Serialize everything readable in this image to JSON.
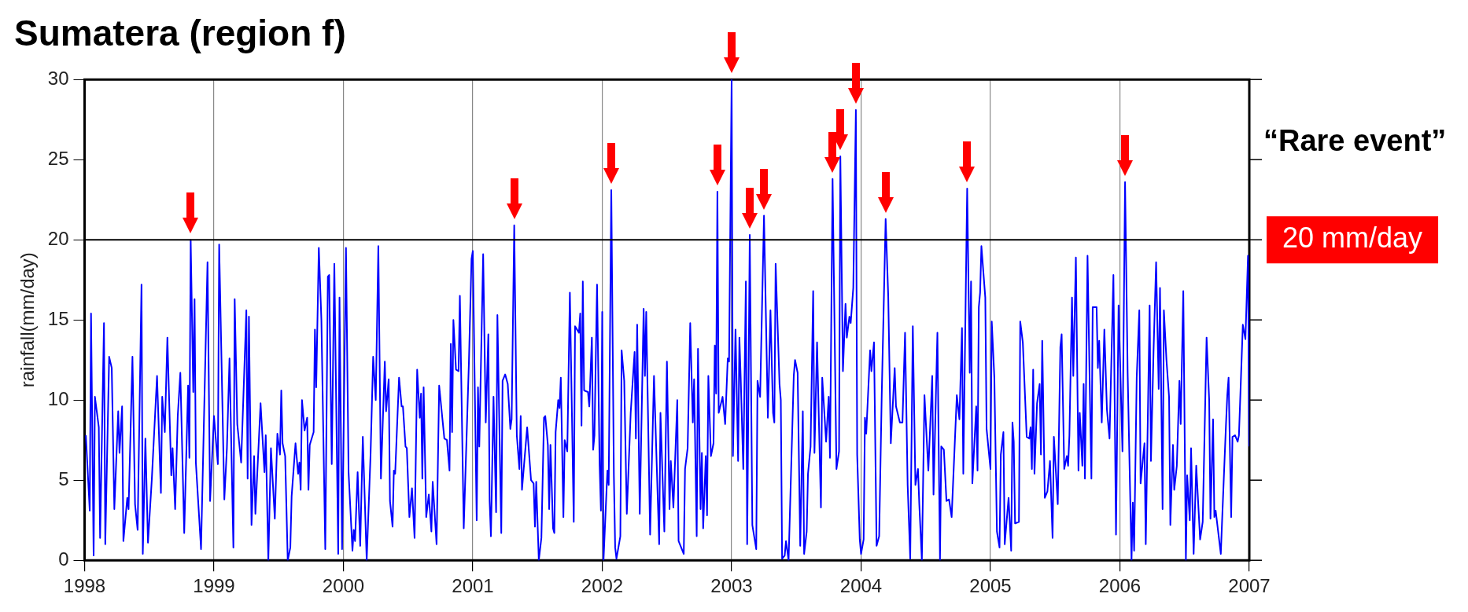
{
  "chart_data": {
    "type": "line",
    "title": "Sumatera (region f)",
    "ylabel": "rainfall(mm/day)",
    "xlim": [
      1998,
      2007
    ],
    "xticks": [
      1998,
      1999,
      2000,
      2001,
      2002,
      2003,
      2004,
      2005,
      2006,
      2007
    ],
    "ylim": [
      0,
      30
    ],
    "yticks": [
      0,
      5,
      10,
      15,
      20,
      25,
      30
    ],
    "grid": "x",
    "ref_lines": [
      {
        "axis": "y",
        "value": 20,
        "label": "20 mm/day"
      }
    ],
    "annotations": [
      "“Rare event”"
    ],
    "series": [
      {
        "color": "#0000ff",
        "x": [
          1998.01,
          1998.04,
          1998.05,
          1998.07,
          1998.08,
          1998.11,
          1998.12,
          1998.15,
          1998.16,
          1998.19,
          1998.21,
          1998.23,
          1998.26,
          1998.27,
          1998.29,
          1998.3,
          1998.33,
          1998.34,
          1998.37,
          1998.39,
          1998.41,
          1998.44,
          1998.45,
          1998.47,
          1998.49,
          1998.52,
          1998.56,
          1998.59,
          1998.6,
          1998.62,
          1998.64,
          1998.67,
          1998.68,
          1998.7,
          1998.72,
          1998.74,
          1998.77,
          1998.8,
          1998.81,
          1998.82,
          1998.84,
          1998.85,
          1998.86,
          1998.9,
          1998.95,
          1998.97,
          1999.0,
          1999.03,
          1999.04,
          1999.08,
          1999.1,
          1999.12,
          1999.15,
          1999.16,
          1999.18,
          1999.21,
          1999.25,
          1999.26,
          1999.27,
          1999.29,
          1999.31,
          1999.32,
          1999.36,
          1999.39,
          1999.4,
          1999.42,
          1999.44,
          1999.47,
          1999.49,
          1999.51,
          1999.52,
          1999.53,
          1999.55,
          1999.57,
          1999.59,
          1999.6,
          1999.63,
          1999.65,
          1999.66,
          1999.67,
          1999.68,
          1999.7,
          1999.72,
          1999.73,
          1999.74,
          1999.77,
          1999.78,
          1999.79,
          1999.81,
          1999.83,
          1999.86,
          1999.88,
          1999.89,
          1999.91,
          1999.93,
          1999.96,
          1999.97,
          1999.99,
          2000.02,
          2000.04,
          2000.07,
          2000.08,
          2000.09,
          2000.11,
          2000.13,
          2000.15,
          2000.18,
          2000.21,
          2000.23,
          2000.25,
          2000.27,
          2000.29,
          2000.32,
          2000.33,
          2000.35,
          2000.36,
          2000.38,
          2000.39,
          2000.4,
          2000.43,
          2000.45,
          2000.46,
          2000.48,
          2000.49,
          2000.51,
          2000.53,
          2000.55,
          2000.57,
          2000.59,
          2000.6,
          2000.61,
          2000.62,
          2000.64,
          2000.66,
          2000.68,
          2000.69,
          2000.72,
          2000.74,
          2000.78,
          2000.8,
          2000.82,
          2000.83,
          2000.84,
          2000.85,
          2000.87,
          2000.89,
          2000.9,
          2000.93,
          2000.97,
          2000.99,
          2001.0,
          2001.03,
          2001.04,
          2001.05,
          2001.08,
          2001.1,
          2001.12,
          2001.13,
          2001.14,
          2001.16,
          2001.18,
          2001.19,
          2001.22,
          2001.23,
          2001.25,
          2001.27,
          2001.29,
          2001.3,
          2001.32,
          2001.34,
          2001.36,
          2001.37,
          2001.38,
          2001.42,
          2001.45,
          2001.47,
          2001.48,
          2001.49,
          2001.51,
          2001.53,
          2001.55,
          2001.56,
          2001.58,
          2001.59,
          2001.6,
          2001.62,
          2001.63,
          2001.64,
          2001.66,
          2001.67,
          2001.68,
          2001.7,
          2001.71,
          2001.73,
          2001.75,
          2001.78,
          2001.79,
          2001.82,
          2001.83,
          2001.84,
          2001.85,
          2001.86,
          2001.89,
          2001.9,
          2001.92,
          2001.93,
          2001.94,
          2001.96,
          2001.98,
          2001.99,
          2002.0,
          2002.01,
          2002.04,
          2002.05,
          2002.07,
          2002.09,
          2002.1,
          2002.11,
          2002.14,
          2002.15,
          2002.17,
          2002.19,
          2002.22,
          2002.25,
          2002.26,
          2002.27,
          2002.29,
          2002.32,
          2002.33,
          2002.34,
          2002.37,
          2002.4,
          2002.44,
          2002.45,
          2002.48,
          2002.5,
          2002.52,
          2002.53,
          2002.55,
          2002.58,
          2002.59,
          2002.63,
          2002.64,
          2002.66,
          2002.68,
          2002.7,
          2002.71,
          2002.73,
          2002.74,
          2002.76,
          2002.77,
          2002.78,
          2002.8,
          2002.81,
          2002.82,
          2002.84,
          2002.86,
          2002.87,
          2002.88,
          2002.89,
          2002.9,
          2002.93,
          2002.95,
          2002.97,
          2002.98,
          2003.0,
          2003.01,
          2003.03,
          2003.05,
          2003.06,
          2003.07,
          2003.09,
          2003.11,
          2003.12,
          2003.14,
          2003.16,
          2003.19,
          2003.2,
          2003.22,
          2003.25,
          2003.28,
          2003.3,
          2003.32,
          2003.33,
          2003.34,
          2003.37,
          2003.38,
          2003.39,
          2003.41,
          2003.42,
          2003.44,
          2003.48,
          2003.49,
          2003.51,
          2003.53,
          2003.55,
          2003.56,
          2003.58,
          2003.59,
          2003.61,
          2003.63,
          2003.64,
          2003.66,
          2003.69,
          2003.7,
          2003.73,
          2003.75,
          2003.76,
          2003.78,
          2003.81,
          2003.83,
          2003.84,
          2003.86,
          2003.88,
          2003.89,
          2003.91,
          2003.92,
          2003.94,
          2003.96,
          2003.97,
          2003.99,
          2004.0,
          2004.02,
          2004.03,
          2004.04,
          2004.07,
          2004.08,
          2004.1,
          2004.12,
          2004.14,
          2004.16,
          2004.19,
          2004.21,
          2004.23,
          2004.26,
          2004.27,
          2004.3,
          2004.32,
          2004.34,
          2004.36,
          2004.38,
          2004.4,
          2004.42,
          2004.44,
          2004.45,
          2004.47,
          2004.49,
          2004.52,
          2004.55,
          2004.56,
          2004.59,
          2004.61,
          2004.62,
          2004.64,
          2004.66,
          2004.68,
          2004.7,
          2004.74,
          2004.76,
          2004.78,
          2004.79,
          2004.82,
          2004.84,
          2004.85,
          2004.86,
          2004.89,
          2004.9,
          2004.91,
          2004.92,
          2004.93,
          2004.96,
          2004.97,
          2005.0,
          2005.01,
          2005.03,
          2005.05,
          2005.07,
          2005.08,
          2005.1,
          2005.11,
          2005.14,
          2005.16,
          2005.17,
          2005.18,
          2005.19,
          2005.22,
          2005.23,
          2005.25,
          2005.28,
          2005.3,
          2005.31,
          2005.32,
          2005.33,
          2005.34,
          2005.36,
          2005.38,
          2005.39,
          2005.4,
          2005.42,
          2005.44,
          2005.46,
          2005.48,
          2005.49,
          2005.52,
          2005.54,
          2005.55,
          2005.57,
          2005.59,
          2005.6,
          2005.61,
          2005.63,
          2005.64,
          2005.66,
          2005.68,
          2005.69,
          2005.71,
          2005.72,
          2005.73,
          2005.75,
          2005.77,
          2005.78,
          2005.79,
          2005.82,
          2005.83,
          2005.84,
          2005.86,
          2005.88,
          2005.9,
          2005.92,
          2005.95,
          2005.97,
          2005.99,
          2006.02,
          2006.04,
          2006.06,
          2006.09,
          2006.1,
          2006.11,
          2006.13,
          2006.15,
          2006.16,
          2006.19,
          2006.2,
          2006.23,
          2006.24,
          2006.26,
          2006.28,
          2006.3,
          2006.31,
          2006.33,
          2006.34,
          2006.36,
          2006.38,
          2006.39,
          2006.41,
          2006.42,
          2006.44,
          2006.46,
          2006.47,
          2006.49,
          2006.51,
          2006.52,
          2006.54,
          2006.55,
          2006.57,
          2006.59,
          2006.62,
          2006.64,
          2006.67,
          2006.69,
          2006.7,
          2006.72,
          2006.73,
          2006.74,
          2006.78,
          2006.79,
          2006.82,
          2006.83,
          2006.84,
          2006.86,
          2006.87,
          2006.89,
          2006.91,
          2006.92,
          2006.95,
          2006.97,
          2006.99,
          2007.0
        ],
        "values": [
          7.8,
          3.1,
          15.4,
          0.3,
          10.2,
          8.3,
          1.4,
          14.8,
          1,
          12.7,
          12,
          3.2,
          9.3,
          6.7,
          9.6,
          1.2,
          3.9,
          3.2,
          12.7,
          3.5,
          1.9,
          17.2,
          0.4,
          7.6,
          1.1,
          5.1,
          11.5,
          4.2,
          10.2,
          8,
          13.9,
          5.3,
          7,
          3.2,
          9,
          11.7,
          1.7,
          10.9,
          6.4,
          20,
          10.5,
          16.3,
          6.1,
          0.7,
          18.6,
          3.7,
          9,
          6,
          19.7,
          3.8,
          7,
          12.6,
          0.8,
          16.3,
          8.5,
          6.1,
          15.6,
          5.1,
          15.2,
          2.2,
          6.5,
          2.9,
          9.8,
          5.5,
          7.8,
          0,
          7,
          2.6,
          7.9,
          6.6,
          10.6,
          7.3,
          6.5,
          0,
          0.8,
          4,
          7.3,
          5.4,
          6.1,
          4.4,
          10,
          8.1,
          8.9,
          4.4,
          7.2,
          8,
          14.4,
          10.8,
          19.5,
          15,
          0.7,
          17.7,
          17.8,
          6,
          18.5,
          0.4,
          16.4,
          0.7,
          19.5,
          5.5,
          0.6,
          1.9,
          1.2,
          5.5,
          0.9,
          7.7,
          0,
          6.6,
          12.7,
          10,
          19.6,
          5.1,
          12.4,
          9.3,
          11.3,
          3.7,
          2.1,
          5.6,
          5.4,
          11.4,
          9.6,
          9.6,
          7.1,
          7,
          2.7,
          4.5,
          1.4,
          11.9,
          8.9,
          10.4,
          5.1,
          10.8,
          2.7,
          4.1,
          1.8,
          4.9,
          1,
          10.9,
          7.6,
          7.5,
          5.6,
          13.5,
          8,
          15,
          11.9,
          11.8,
          16.5,
          2,
          12.4,
          18.8,
          19.3,
          2.5,
          10.8,
          7.1,
          19.1,
          8.6,
          14.1,
          3.7,
          1.5,
          10.2,
          3,
          15.3,
          1.7,
          11.2,
          11.6,
          11,
          8.2,
          8.8,
          20.9,
          7.8,
          5.7,
          9,
          4.4,
          8.3,
          5,
          4.8,
          2.1,
          4.9,
          0,
          1.4,
          8.9,
          9,
          7.2,
          3.2,
          7.2,
          2,
          1.7,
          8,
          10,
          9.5,
          11.4,
          2.7,
          7.5,
          6.8,
          16.7,
          2.4,
          14.6,
          14.2,
          15.4,
          8.4,
          17.4,
          10.6,
          10.5,
          9.6,
          13.9,
          6.9,
          7.8,
          17.2,
          5.9,
          3.1,
          15.5,
          0,
          5.6,
          4.7,
          23.1,
          5.3,
          0.8,
          0.1,
          1.5,
          13.1,
          11.2,
          2.9,
          9.2,
          13,
          7.6,
          14.7,
          2.9,
          15.7,
          11.5,
          15.5,
          1.6,
          11.5,
          1,
          9.2,
          1.8,
          12.4,
          3.2,
          6.2,
          3.3,
          10,
          1.2,
          0.4,
          5.7,
          7,
          14.8,
          8.6,
          11.3,
          1.5,
          13.2,
          3.2,
          6.7,
          2,
          6.5,
          2.8,
          11.5,
          6.5,
          7.3,
          13.4,
          10.4,
          23,
          9.2,
          10.2,
          8.5,
          12.6,
          12.4,
          30,
          6.5,
          14.4,
          6.2,
          13.9,
          11.4,
          5.7,
          17.4,
          1,
          20.3,
          2.2,
          0.7,
          11.2,
          10.2,
          21.5,
          8.9,
          15.6,
          9.2,
          8.6,
          18.5,
          11,
          10,
          0.1,
          0.3,
          1.2,
          0,
          11.5,
          12.5,
          11.7,
          0.9,
          9.3,
          0.4,
          1.8,
          5.4,
          7.1,
          16.8,
          6.7,
          13.6,
          3.3,
          11.4,
          7.4,
          10.2,
          6.4,
          23.8,
          5.7,
          6.8,
          25.2,
          11.8,
          16,
          13.9,
          15.2,
          14.8,
          17,
          28.1,
          6.6,
          1.3,
          0.4,
          1.3,
          8.9,
          7.9,
          13.1,
          11.8,
          13.6,
          0.9,
          1.5,
          10.4,
          21.3,
          16.5,
          7.3,
          12,
          9.6,
          8.6,
          8.6,
          14.2,
          4.7,
          0.1,
          14.6,
          4.7,
          5.7,
          3.5,
          0,
          10.3,
          5.6,
          11.5,
          4.1,
          14.2,
          0,
          7.1,
          6.9,
          3.7,
          3.8,
          2.7,
          10.3,
          8.8,
          14.5,
          5.4,
          23.2,
          11.7,
          17.4,
          4.8,
          9.6,
          5.6,
          15.8,
          16.7,
          19.6,
          16.4,
          8.2,
          5.7,
          14.9,
          11.4,
          1.8,
          0.8,
          6.6,
          8,
          1,
          3.9,
          0.6,
          8.6,
          7.4,
          2.3,
          2.4,
          14.9,
          13.6,
          7.7,
          7.6,
          8.3,
          5.7,
          11.9,
          5.4,
          9.8,
          11,
          6.6,
          13.7,
          3.9,
          4.3,
          6.2,
          1.4,
          7.7,
          3.5,
          13.3,
          14.1,
          5.7,
          6.5,
          5.9,
          7.8,
          16.4,
          11.5,
          18.9,
          5.6,
          9.2,
          5.9,
          11,
          5.1,
          19,
          9.6,
          5.1,
          15.8,
          15.8,
          12,
          13.7,
          8.6,
          14.4,
          9.4,
          7.6,
          17.8,
          1.6,
          15.9,
          6.8,
          23.6,
          11.7,
          0,
          3.6,
          0.6,
          11.4,
          15.6,
          4.8,
          7.3,
          1,
          15.9,
          6.2,
          13,
          18.6,
          10.7,
          17,
          3.2,
          15.6,
          12.5,
          10.2,
          2.2,
          7.2,
          4.4,
          5.9,
          11.2,
          8.5,
          16.8,
          0,
          5.3,
          2.5,
          7,
          0.4,
          5.9,
          1.3,
          2.4,
          13.9,
          10,
          2.6,
          8.8,
          2.7,
          3.1,
          0.4,
          2.5,
          8.5,
          10.3,
          11.4,
          2.7,
          7.7,
          7.8,
          7.4,
          7.8,
          14.7,
          13.8,
          19,
          7.1
        ]
      }
    ]
  }
}
